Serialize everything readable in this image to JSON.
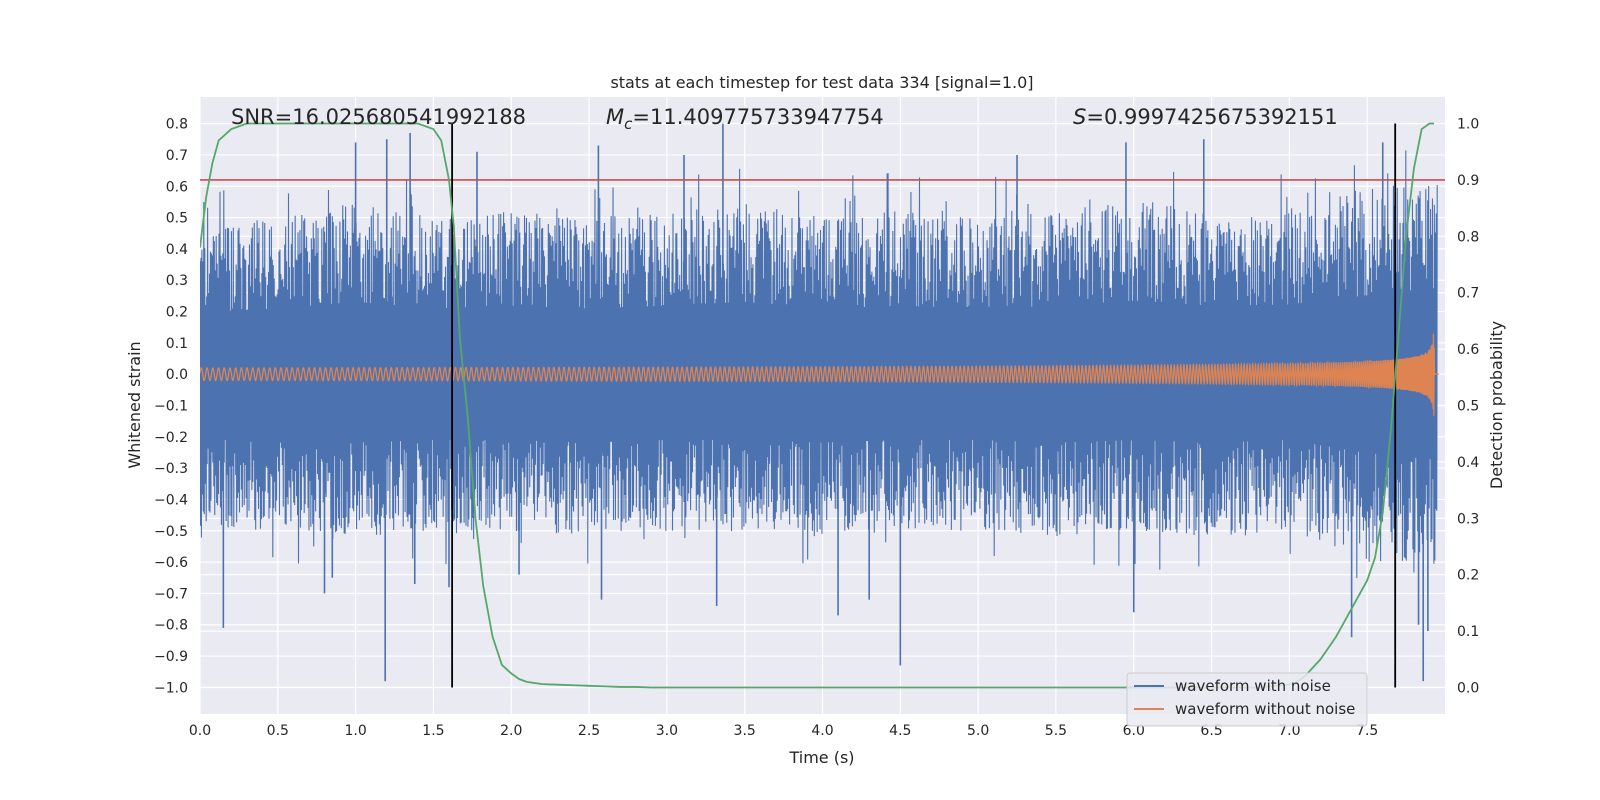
{
  "chart_data": {
    "type": "line",
    "title": "stats at each timestep for test data 334 [signal=1.0]",
    "xlabel": "Time (s)",
    "ylabel": "Whitened strain",
    "y2label": "Detection probability",
    "xlim": [
      0.0,
      8.0
    ],
    "ylim": [
      -1.085,
      0.885
    ],
    "y2lim": [
      -0.047,
      1.047
    ],
    "xticks": [
      0.0,
      0.5,
      1.0,
      1.5,
      2.0,
      2.5,
      3.0,
      3.5,
      4.0,
      4.5,
      5.0,
      5.5,
      6.0,
      6.5,
      7.0,
      7.5
    ],
    "xtick_labels": [
      "0.0",
      "0.5",
      "1.0",
      "1.5",
      "2.0",
      "2.5",
      "3.0",
      "3.5",
      "4.0",
      "4.5",
      "5.0",
      "5.5",
      "6.0",
      "6.5",
      "7.0",
      "7.5"
    ],
    "yticks": [
      0.8,
      0.7,
      0.6,
      0.5,
      0.4,
      0.3,
      0.2,
      0.1,
      0.0,
      -0.1,
      -0.2,
      -0.3,
      -0.4,
      -0.5,
      -0.6,
      -0.7,
      -0.8,
      -0.9,
      -1.0
    ],
    "ytick_labels": [
      "0.8",
      "0.7",
      "0.6",
      "0.5",
      "0.4",
      "0.3",
      "0.2",
      "0.1",
      "0.0",
      "−0.1",
      "−0.2",
      "−0.3",
      "−0.4",
      "−0.5",
      "−0.6",
      "−0.7",
      "−0.8",
      "−0.9",
      "−1.0"
    ],
    "y2ticks": [
      1.0,
      0.9,
      0.8,
      0.7,
      0.6,
      0.5,
      0.4,
      0.3,
      0.2,
      0.1,
      0.0
    ],
    "y2tick_labels": [
      "1.0",
      "0.9",
      "0.8",
      "0.7",
      "0.6",
      "0.5",
      "0.4",
      "0.3",
      "0.2",
      "0.1",
      "0.0"
    ],
    "grid": true,
    "legend_placement": "lower-right",
    "annotations": {
      "snr": "SNR=16.025680541992188",
      "mc_symbol": "M",
      "mc_sub": "c",
      "mc_value": "=11.409775733947754",
      "s_symbol": "S",
      "s_value": "=0.9997425675392151"
    },
    "series": [
      {
        "name": "waveform with noise",
        "color": "#4c72b0",
        "axis": "left",
        "kind": "noise",
        "envelope_top": [
          [
            0.0,
            0.47
          ],
          [
            0.5,
            0.5
          ],
          [
            1.0,
            0.55
          ],
          [
            1.5,
            0.5
          ],
          [
            2.0,
            0.52
          ],
          [
            2.5,
            0.5
          ],
          [
            3.0,
            0.52
          ],
          [
            3.5,
            0.55
          ],
          [
            4.0,
            0.5
          ],
          [
            4.5,
            0.52
          ],
          [
            5.0,
            0.5
          ],
          [
            5.5,
            0.52
          ],
          [
            6.0,
            0.56
          ],
          [
            6.5,
            0.52
          ],
          [
            7.0,
            0.53
          ],
          [
            7.5,
            0.6
          ],
          [
            7.95,
            0.62
          ]
        ],
        "envelope_bottom": [
          [
            0.0,
            -0.5
          ],
          [
            0.5,
            -0.5
          ],
          [
            1.0,
            -0.52
          ],
          [
            1.5,
            -0.5
          ],
          [
            2.0,
            -0.5
          ],
          [
            2.5,
            -0.52
          ],
          [
            3.0,
            -0.5
          ],
          [
            3.5,
            -0.5
          ],
          [
            4.0,
            -0.52
          ],
          [
            4.5,
            -0.5
          ],
          [
            5.0,
            -0.5
          ],
          [
            5.5,
            -0.52
          ],
          [
            6.0,
            -0.5
          ],
          [
            6.5,
            -0.52
          ],
          [
            7.0,
            -0.5
          ],
          [
            7.5,
            -0.6
          ],
          [
            7.95,
            -0.65
          ]
        ],
        "spikes": [
          [
            0.15,
            -0.81
          ],
          [
            0.8,
            -0.7
          ],
          [
            0.85,
            -0.65
          ],
          [
            1.0,
            0.74
          ],
          [
            1.19,
            -0.98
          ],
          [
            1.2,
            0.75
          ],
          [
            1.35,
            0.77
          ],
          [
            1.38,
            -0.67
          ],
          [
            1.6,
            -0.68
          ],
          [
            1.78,
            0.71
          ],
          [
            2.05,
            -0.64
          ],
          [
            2.56,
            0.73
          ],
          [
            2.58,
            -0.72
          ],
          [
            3.11,
            0.7
          ],
          [
            3.36,
            0.8
          ],
          [
            3.32,
            -0.74
          ],
          [
            4.1,
            -0.77
          ],
          [
            4.5,
            -0.93
          ],
          [
            4.3,
            -0.72
          ],
          [
            5.25,
            0.7
          ],
          [
            5.95,
            0.74
          ],
          [
            6.0,
            -0.76
          ],
          [
            6.45,
            0.75
          ],
          [
            7.4,
            -0.84
          ],
          [
            7.6,
            0.74
          ],
          [
            7.83,
            -0.8
          ],
          [
            7.86,
            -0.98
          ],
          [
            7.89,
            -0.82
          ]
        ]
      },
      {
        "name": "waveform without noise",
        "color": "#dd8452",
        "axis": "left",
        "kind": "chirp",
        "t_merge": 7.93,
        "amp_start": 0.02,
        "amp_peak": 0.6,
        "f_start": 27.0,
        "f_end": 200.0
      },
      {
        "name": "",
        "color": "#55a868",
        "axis": "right",
        "kind": "probability",
        "x": [
          0.0,
          0.04,
          0.08,
          0.12,
          0.2,
          0.3,
          0.4,
          0.5,
          0.7,
          1.0,
          1.2,
          1.4,
          1.5,
          1.55,
          1.6,
          1.63,
          1.67,
          1.72,
          1.77,
          1.82,
          1.88,
          1.94,
          2.0,
          2.05,
          2.1,
          2.2,
          2.3,
          2.4,
          2.5,
          2.6,
          2.7,
          2.8,
          2.9,
          3.0,
          3.5,
          4.0,
          5.0,
          6.0,
          6.8,
          7.0,
          7.05,
          7.1,
          7.2,
          7.3,
          7.4,
          7.5,
          7.55,
          7.6,
          7.65,
          7.7,
          7.75,
          7.8,
          7.85,
          7.9,
          7.93
        ],
        "y": [
          0.78,
          0.87,
          0.93,
          0.97,
          0.99,
          1.0,
          1.0,
          1.0,
          1.0,
          1.0,
          1.0,
          1.0,
          0.99,
          0.97,
          0.9,
          0.82,
          0.62,
          0.48,
          0.3,
          0.18,
          0.09,
          0.04,
          0.025,
          0.015,
          0.01,
          0.006,
          0.005,
          0.004,
          0.003,
          0.002,
          0.001,
          0.001,
          0.0,
          0.0,
          0.0,
          0.0,
          0.0,
          0.0,
          0.0,
          0.005,
          0.01,
          0.02,
          0.05,
          0.09,
          0.14,
          0.19,
          0.23,
          0.31,
          0.45,
          0.62,
          0.8,
          0.92,
          0.99,
          1.0,
          1.0
        ]
      }
    ],
    "hlines": [
      {
        "y": 0.9,
        "axis": "right",
        "color": "#c44e52"
      }
    ],
    "vlines": [
      {
        "x": 1.62,
        "color": "#000000"
      },
      {
        "x": 7.68,
        "color": "#000000"
      }
    ],
    "legend": [
      {
        "label": "waveform with noise",
        "color": "#4c72b0"
      },
      {
        "label": "waveform without noise",
        "color": "#dd8452"
      }
    ]
  }
}
